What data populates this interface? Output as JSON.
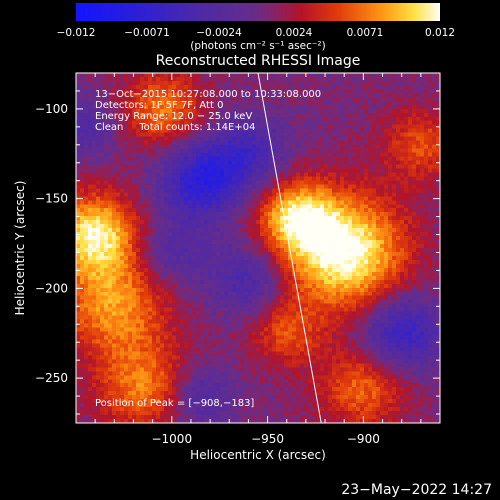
{
  "chart_data": {
    "type": "heatmap",
    "title": "Reconstructed RHESSI Image",
    "xlabel": "Heliocentric X (arcsec)",
    "ylabel": "Heliocentric Y (arcsec)",
    "xlim": [
      -1050,
      -860
    ],
    "ylim": [
      -275,
      -80
    ],
    "x_ticks": [
      "−1000",
      "−950",
      "−900"
    ],
    "x_tick_values": [
      -1000,
      -950,
      -900
    ],
    "y_ticks": [
      "−100",
      "−150",
      "−200",
      "−250"
    ],
    "y_tick_values": [
      -100,
      -150,
      -200,
      -250
    ],
    "colorbar": {
      "min": -0.012,
      "max": 0.012,
      "tick_labels": [
        "−0.012",
        "−0.0071",
        "−0.0024",
        "0.0024",
        "0.0071",
        "0.012"
      ],
      "tick_values": [
        -0.012,
        -0.0071,
        -0.0024,
        0.0024,
        0.0071,
        0.012
      ],
      "units": "(photons cm⁻² s⁻¹ asec⁻²)"
    },
    "grid": false,
    "peak": [
      -908,
      -183
    ],
    "sources": [
      {
        "x": -910,
        "y": -180,
        "sigma": 22,
        "amp": 0.012
      },
      {
        "x": -935,
        "y": -160,
        "sigma": 14,
        "amp": 0.0085
      },
      {
        "x": -1040,
        "y": -170,
        "sigma": 16,
        "amp": 0.0105
      },
      {
        "x": -1030,
        "y": -210,
        "sigma": 20,
        "amp": 0.0075
      },
      {
        "x": -1015,
        "y": -255,
        "sigma": 17,
        "amp": 0.0065
      },
      {
        "x": -1005,
        "y": -100,
        "sigma": 15,
        "amp": 0.0065
      },
      {
        "x": -900,
        "y": -255,
        "sigma": 16,
        "amp": 0.006
      },
      {
        "x": -940,
        "y": -225,
        "sigma": 13,
        "amp": 0.0048
      },
      {
        "x": -870,
        "y": -120,
        "sigma": 14,
        "amp": 0.005
      },
      {
        "x": -985,
        "y": -140,
        "sigma": 15,
        "amp": -0.0085
      },
      {
        "x": -960,
        "y": -125,
        "sigma": 14,
        "amp": -0.0055
      },
      {
        "x": -960,
        "y": -195,
        "sigma": 14,
        "amp": -0.005
      },
      {
        "x": -880,
        "y": -225,
        "sigma": 15,
        "amp": -0.0075
      },
      {
        "x": -1000,
        "y": -180,
        "sigma": 14,
        "amp": -0.004
      },
      {
        "x": -1045,
        "y": -110,
        "sigma": 12,
        "amp": -0.004
      },
      {
        "x": -985,
        "y": -260,
        "sigma": 12,
        "amp": -0.0045
      }
    ],
    "limb_line": [
      [
        -955,
        -80
      ],
      [
        -922,
        -275
      ]
    ]
  },
  "annotations": {
    "time_range": "13−Oct−2015 10:27:08.000 to 10:33:08.000",
    "detectors": "Detectors: 1F 5F 7F, Att 0",
    "energy": "Energy Range: 12.0 − 25.0 keV",
    "clean": "Clean     Total counts: 1.14E+04",
    "peak": "Position of Peak = [−908,−183]"
  },
  "timestamp": "23−May−2022 14:27"
}
